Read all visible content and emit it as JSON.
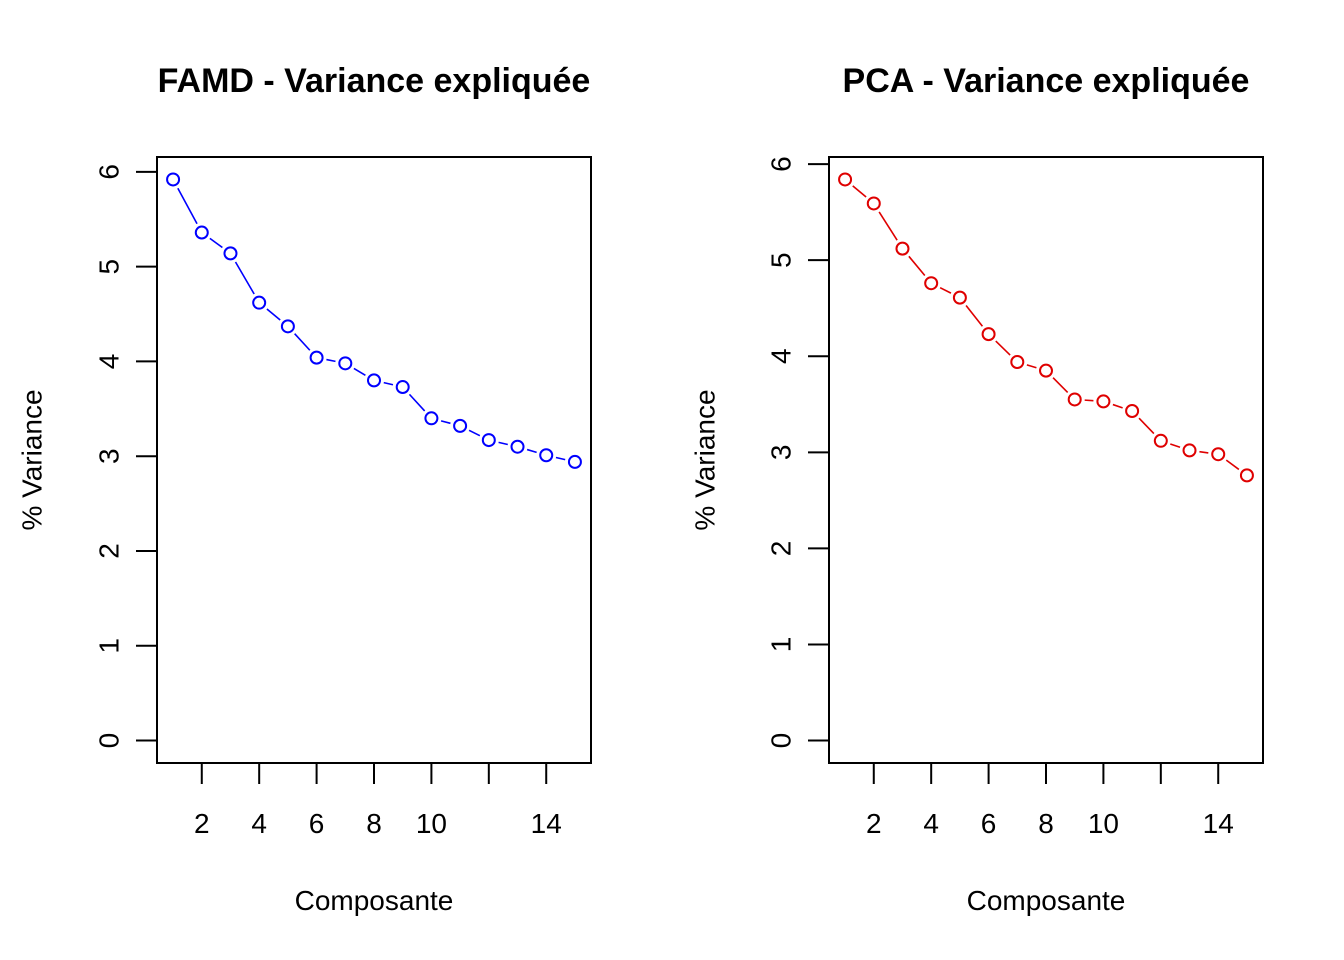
{
  "chart_data": [
    {
      "type": "line",
      "title": "FAMD - Variance expliquée",
      "xlabel": "Composante",
      "ylabel": "% Variance",
      "color": "#0000ff",
      "x": [
        1,
        2,
        3,
        4,
        5,
        6,
        7,
        8,
        9,
        10,
        11,
        12,
        13,
        14,
        15
      ],
      "values": [
        5.92,
        5.36,
        5.14,
        4.62,
        4.37,
        4.04,
        3.98,
        3.8,
        3.73,
        3.4,
        3.32,
        3.17,
        3.1,
        3.01,
        2.94
      ],
      "xticks": [
        2,
        4,
        6,
        8,
        10,
        12,
        14
      ],
      "xtick_labels": [
        "2",
        "4",
        "6",
        "8",
        "10",
        "",
        "14"
      ],
      "yticks": [
        0,
        1,
        2,
        3,
        4,
        5,
        6
      ],
      "ytick_labels": [
        "0",
        "1",
        "2",
        "3",
        "4",
        "5",
        "6"
      ],
      "xlim": [
        0.44,
        15.56
      ],
      "ylim": [
        -0.2368,
        6.1568
      ],
      "grid": false,
      "legend": "none"
    },
    {
      "type": "line",
      "title": "PCA - Variance expliquée",
      "xlabel": "Composante",
      "ylabel": "% Variance",
      "color": "#df0000",
      "x": [
        1,
        2,
        3,
        4,
        5,
        6,
        7,
        8,
        9,
        10,
        11,
        12,
        13,
        14,
        15
      ],
      "values": [
        5.84,
        5.59,
        5.12,
        4.76,
        4.61,
        4.23,
        3.94,
        3.85,
        3.55,
        3.53,
        3.43,
        3.12,
        3.02,
        2.98,
        2.76
      ],
      "xticks": [
        2,
        4,
        6,
        8,
        10,
        12,
        14
      ],
      "xtick_labels": [
        "2",
        "4",
        "6",
        "8",
        "10",
        "",
        "14"
      ],
      "yticks": [
        0,
        1,
        2,
        3,
        4,
        5,
        6
      ],
      "ytick_labels": [
        "0",
        "1",
        "2",
        "3",
        "4",
        "5",
        "6"
      ],
      "xlim": [
        0.44,
        15.56
      ],
      "ylim": [
        -0.2336,
        6.0736
      ],
      "grid": false,
      "legend": "none"
    }
  ]
}
